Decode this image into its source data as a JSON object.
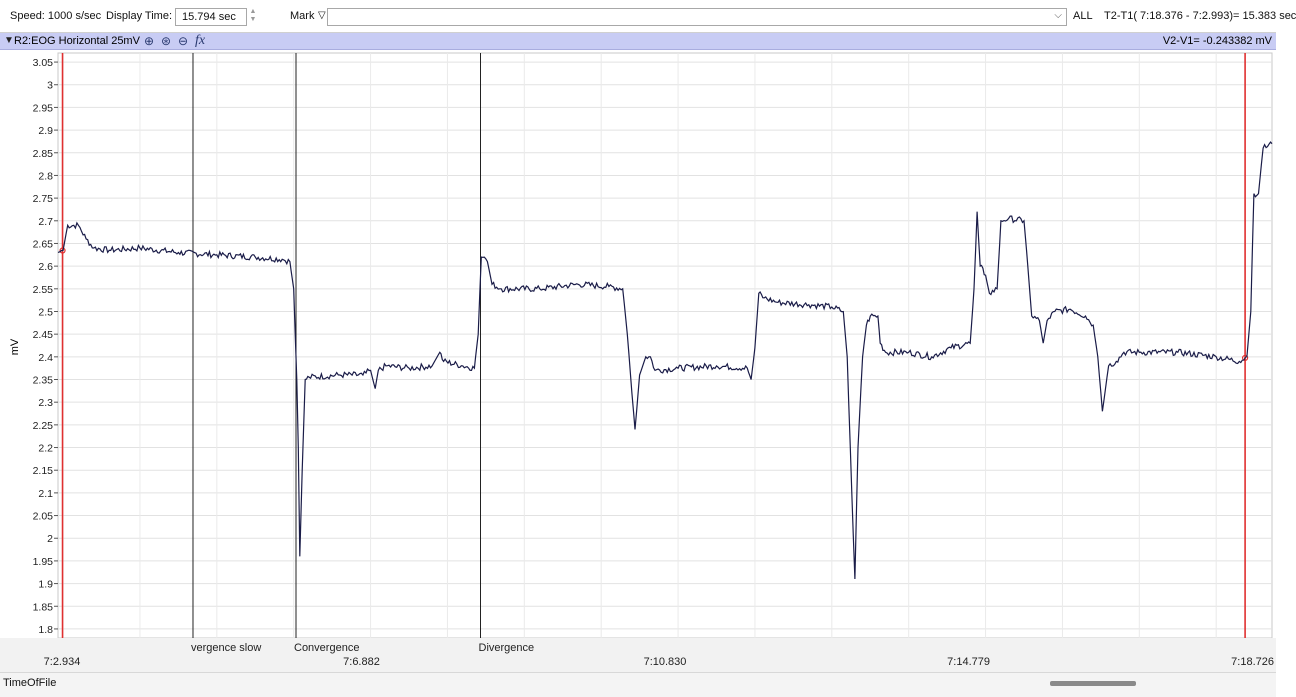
{
  "toolbar": {
    "speed_label": "Speed: 1000 s/sec",
    "display_time_label": "Display Time:",
    "display_time_value": "15.794 sec",
    "mark_label": "Mark",
    "mark_value": "",
    "all_label": "ALL",
    "t2t1": "T2-T1( 7:18.376 -  7:2.993)= 15.383 sec"
  },
  "channel": {
    "label": "R2:EOG Horizontal 25mV",
    "v2v1": "V2-V1= -0.243382 mV",
    "fx": "fx"
  },
  "footer": {
    "label": "TimeOfFile"
  },
  "chart_data": {
    "type": "line",
    "ylabel": "mV",
    "ylim": [
      1.78,
      3.07
    ],
    "yticks": [
      1.8,
      1.85,
      1.9,
      1.95,
      2,
      2.05,
      2.1,
      2.15,
      2.2,
      2.25,
      2.3,
      2.35,
      2.4,
      2.45,
      2.5,
      2.55,
      2.6,
      2.65,
      2.7,
      2.75,
      2.8,
      2.85,
      2.9,
      2.95,
      3,
      3.05
    ],
    "xlim": [
      2.934,
      18.726
    ],
    "xtick_labels": [
      {
        "t": 2.934,
        "label": "7:2.934"
      },
      {
        "t": 6.882,
        "label": "7:6.882"
      },
      {
        "t": 10.83,
        "label": "7:10.830"
      },
      {
        "t": 14.779,
        "label": "7:14.779"
      },
      {
        "t": 18.726,
        "label": "7:18.726"
      }
    ],
    "cursors": [
      {
        "t": 2.993,
        "color": "#e03030"
      },
      {
        "t": 18.376,
        "color": "#e03030"
      }
    ],
    "markers": [
      {
        "t": 4.69,
        "label": "vergence slow"
      },
      {
        "t": 6.03,
        "label": "Convergence"
      },
      {
        "t": 8.43,
        "label": "Divergence"
      }
    ],
    "series": [
      {
        "color": "#1a1c48",
        "points": [
          [
            2.934,
            2.63
          ],
          [
            3.0,
            2.635
          ],
          [
            3.06,
            2.69
          ],
          [
            3.2,
            2.69
          ],
          [
            3.3,
            2.66
          ],
          [
            3.4,
            2.64
          ],
          [
            3.6,
            2.635
          ],
          [
            4.0,
            2.64
          ],
          [
            4.5,
            2.63
          ],
          [
            5.0,
            2.625
          ],
          [
            5.5,
            2.62
          ],
          [
            5.85,
            2.615
          ],
          [
            5.95,
            2.61
          ],
          [
            6.0,
            2.55
          ],
          [
            6.04,
            2.35
          ],
          [
            6.06,
            2.2
          ],
          [
            6.08,
            1.96
          ],
          [
            6.11,
            2.15
          ],
          [
            6.15,
            2.35
          ],
          [
            6.2,
            2.355
          ],
          [
            6.6,
            2.36
          ],
          [
            6.9,
            2.36
          ],
          [
            7.0,
            2.37
          ],
          [
            7.06,
            2.33
          ],
          [
            7.1,
            2.37
          ],
          [
            7.2,
            2.38
          ],
          [
            7.5,
            2.375
          ],
          [
            7.8,
            2.38
          ],
          [
            7.9,
            2.41
          ],
          [
            7.95,
            2.39
          ],
          [
            8.2,
            2.38
          ],
          [
            8.35,
            2.375
          ],
          [
            8.4,
            2.45
          ],
          [
            8.44,
            2.62
          ],
          [
            8.48,
            2.62
          ],
          [
            8.52,
            2.61
          ],
          [
            8.58,
            2.56
          ],
          [
            8.7,
            2.55
          ],
          [
            9.2,
            2.55
          ],
          [
            9.7,
            2.56
          ],
          [
            10.1,
            2.555
          ],
          [
            10.28,
            2.55
          ],
          [
            10.34,
            2.45
          ],
          [
            10.4,
            2.32
          ],
          [
            10.44,
            2.24
          ],
          [
            10.5,
            2.36
          ],
          [
            10.58,
            2.4
          ],
          [
            10.64,
            2.4
          ],
          [
            10.7,
            2.37
          ],
          [
            11.0,
            2.375
          ],
          [
            11.5,
            2.38
          ],
          [
            11.9,
            2.375
          ],
          [
            11.95,
            2.35
          ],
          [
            12.0,
            2.42
          ],
          [
            12.05,
            2.54
          ],
          [
            12.12,
            2.53
          ],
          [
            12.3,
            2.52
          ],
          [
            12.7,
            2.515
          ],
          [
            13.0,
            2.51
          ],
          [
            13.15,
            2.5
          ],
          [
            13.2,
            2.4
          ],
          [
            13.26,
            2.1
          ],
          [
            13.3,
            1.91
          ],
          [
            13.34,
            2.2
          ],
          [
            13.4,
            2.4
          ],
          [
            13.45,
            2.47
          ],
          [
            13.5,
            2.49
          ],
          [
            13.6,
            2.49
          ],
          [
            13.63,
            2.43
          ],
          [
            13.7,
            2.41
          ],
          [
            14.0,
            2.41
          ],
          [
            14.3,
            2.4
          ],
          [
            14.55,
            2.42
          ],
          [
            14.8,
            2.43
          ],
          [
            14.85,
            2.55
          ],
          [
            14.89,
            2.72
          ],
          [
            14.93,
            2.6
          ],
          [
            15.0,
            2.58
          ],
          [
            15.05,
            2.54
          ],
          [
            15.15,
            2.55
          ],
          [
            15.2,
            2.7
          ],
          [
            15.3,
            2.705
          ],
          [
            15.5,
            2.7
          ],
          [
            15.55,
            2.6
          ],
          [
            15.6,
            2.49
          ],
          [
            15.7,
            2.48
          ],
          [
            15.75,
            2.43
          ],
          [
            15.8,
            2.48
          ],
          [
            15.9,
            2.5
          ],
          [
            16.1,
            2.505
          ],
          [
            16.3,
            2.49
          ],
          [
            16.4,
            2.47
          ],
          [
            16.46,
            2.4
          ],
          [
            16.52,
            2.28
          ],
          [
            16.6,
            2.38
          ],
          [
            16.7,
            2.39
          ],
          [
            16.8,
            2.41
          ],
          [
            17.0,
            2.41
          ],
          [
            17.5,
            2.41
          ],
          [
            18.0,
            2.4
          ],
          [
            18.3,
            2.39
          ],
          [
            18.4,
            2.4
          ],
          [
            18.45,
            2.5
          ],
          [
            18.49,
            2.76
          ],
          [
            18.55,
            2.76
          ],
          [
            18.61,
            2.86
          ],
          [
            18.726,
            2.87
          ]
        ]
      }
    ]
  }
}
